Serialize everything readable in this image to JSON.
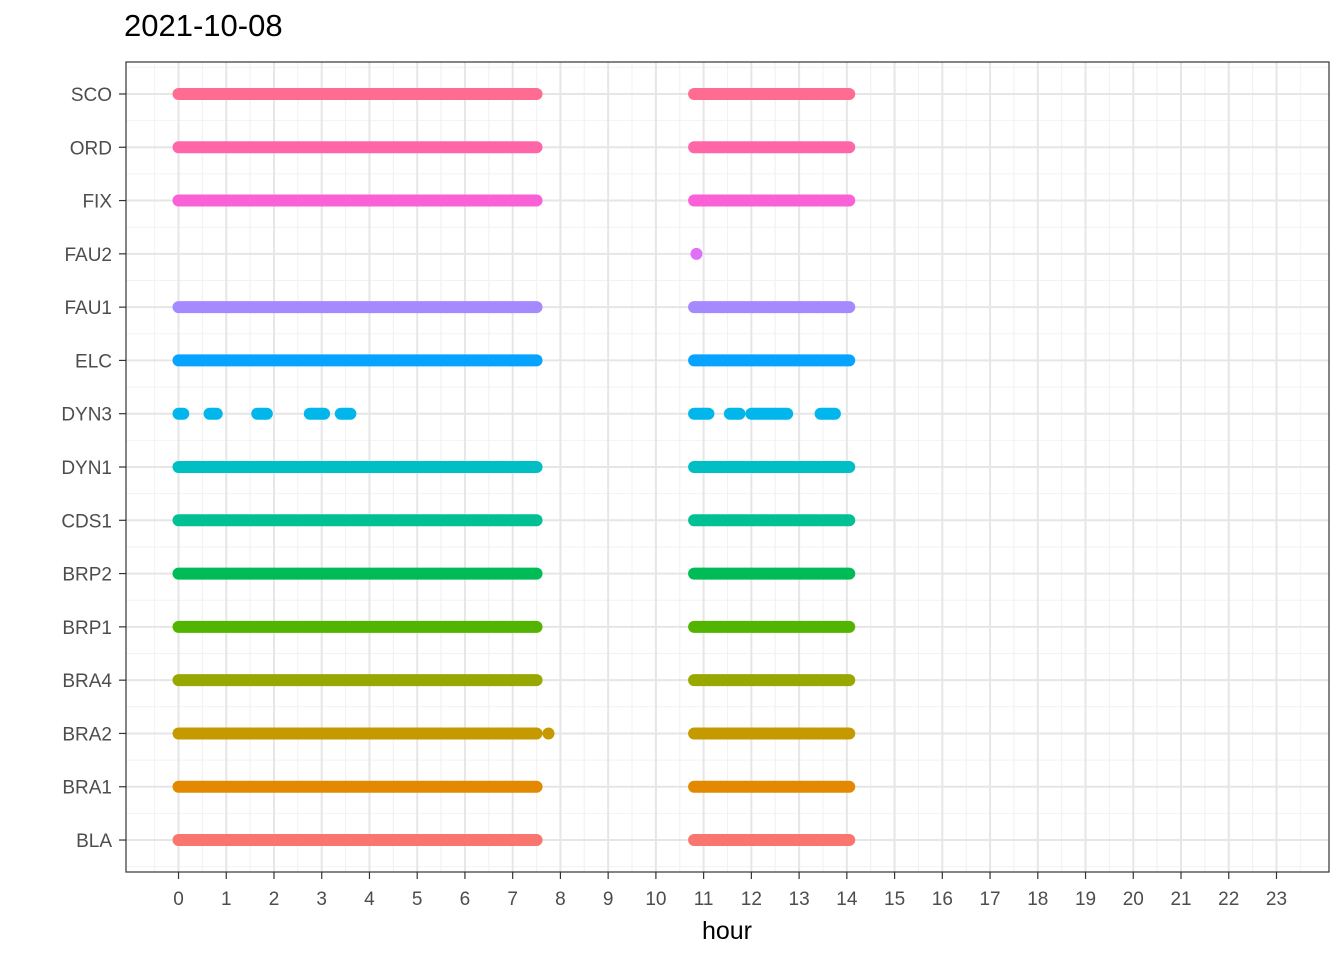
{
  "chart_data": {
    "type": "scatter",
    "title": "2021-10-08",
    "xlabel": "hour",
    "ylabel": "",
    "xlim": [
      -1.1,
      24.1
    ],
    "x_ticks": [
      0,
      1,
      2,
      3,
      4,
      5,
      6,
      7,
      8,
      9,
      10,
      11,
      12,
      13,
      14,
      15,
      16,
      17,
      18,
      19,
      20,
      21,
      22,
      23
    ],
    "categories": [
      "BLA",
      "BRA1",
      "BRA2",
      "BRA4",
      "BRP1",
      "BRP2",
      "CDS1",
      "DYN1",
      "DYN3",
      "ELC",
      "FAU1",
      "FAU2",
      "FIX",
      "ORD",
      "SCO"
    ],
    "grid": true,
    "legend": "none",
    "series": [
      {
        "category": "BLA",
        "color": "#F8766D",
        "segments": [
          [
            0,
            7.5
          ],
          [
            10.8,
            14.05
          ]
        ],
        "points": []
      },
      {
        "category": "BRA1",
        "color": "#E38900",
        "segments": [
          [
            0,
            7.5
          ],
          [
            10.8,
            14.05
          ]
        ],
        "points": []
      },
      {
        "category": "BRA2",
        "color": "#C49A00",
        "segments": [
          [
            0,
            7.5
          ],
          [
            10.8,
            14.05
          ]
        ],
        "points": [
          7.75
        ]
      },
      {
        "category": "BRA4",
        "color": "#99A800",
        "segments": [
          [
            0,
            7.5
          ],
          [
            10.8,
            14.05
          ]
        ],
        "points": []
      },
      {
        "category": "BRP1",
        "color": "#53B400",
        "segments": [
          [
            0,
            7.5
          ],
          [
            10.8,
            14.05
          ]
        ],
        "points": []
      },
      {
        "category": "BRP2",
        "color": "#00BC56",
        "segments": [
          [
            0,
            7.5
          ],
          [
            10.8,
            14.05
          ]
        ],
        "points": []
      },
      {
        "category": "CDS1",
        "color": "#00C094",
        "segments": [
          [
            0,
            7.5
          ],
          [
            10.8,
            14.05
          ]
        ],
        "points": []
      },
      {
        "category": "DYN1",
        "color": "#00BFC4",
        "segments": [
          [
            0,
            7.5
          ],
          [
            10.8,
            14.05
          ]
        ],
        "points": []
      },
      {
        "category": "DYN3",
        "color": "#00B6EB",
        "segments": [
          [
            0,
            0.1
          ],
          [
            0.65,
            0.8
          ],
          [
            1.65,
            1.85
          ],
          [
            2.75,
            3.05
          ],
          [
            3.4,
            3.6
          ],
          [
            10.8,
            11.1
          ],
          [
            11.55,
            11.75
          ],
          [
            12.0,
            12.5
          ],
          [
            12.55,
            12.75
          ],
          [
            13.45,
            13.75
          ]
        ],
        "points": []
      },
      {
        "category": "ELC",
        "color": "#06A4FF",
        "segments": [
          [
            0,
            7.5
          ],
          [
            10.8,
            14.05
          ]
        ],
        "points": []
      },
      {
        "category": "FAU1",
        "color": "#A58AFF",
        "segments": [
          [
            0,
            7.5
          ],
          [
            10.8,
            14.05
          ]
        ],
        "points": []
      },
      {
        "category": "FAU2",
        "color": "#DF70F8",
        "segments": [],
        "points": [
          10.85
        ]
      },
      {
        "category": "FIX",
        "color": "#FB61D7",
        "segments": [
          [
            0,
            7.5
          ],
          [
            10.8,
            14.05
          ]
        ],
        "points": []
      },
      {
        "category": "ORD",
        "color": "#FF66A8",
        "segments": [
          [
            0,
            7.5
          ],
          [
            10.8,
            14.05
          ]
        ],
        "points": []
      },
      {
        "category": "SCO",
        "color": "#FF6C91",
        "segments": [
          [
            0,
            7.5
          ],
          [
            10.8,
            14.05
          ]
        ],
        "points": []
      }
    ]
  }
}
